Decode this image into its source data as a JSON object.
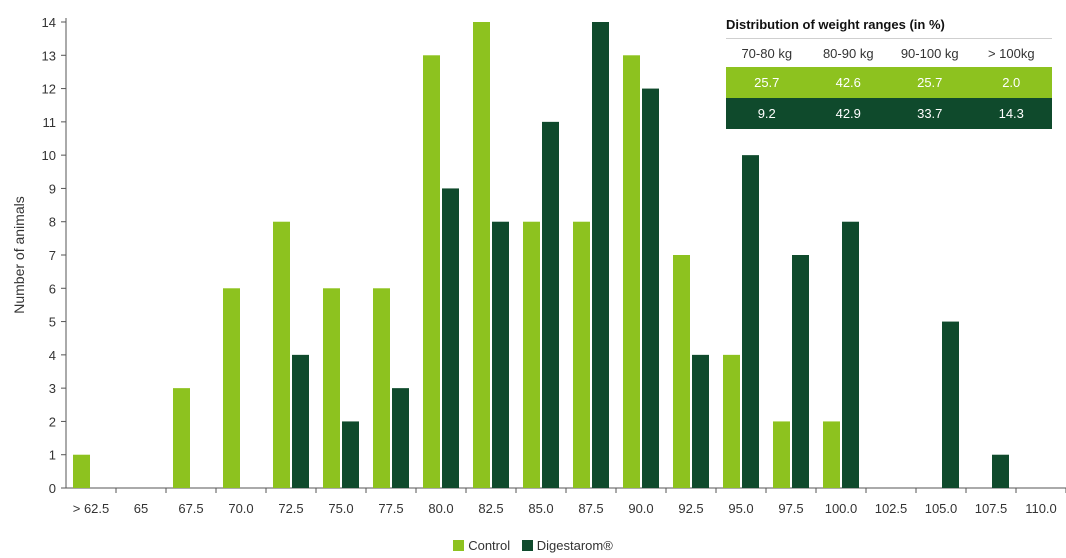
{
  "chart_data": {
    "type": "bar",
    "categories": [
      "> 62.5",
      "65",
      "67.5",
      "70.0",
      "72.5",
      "75.0",
      "77.5",
      "80.0",
      "82.5",
      "85.0",
      "87.5",
      "90.0",
      "92.5",
      "95.0",
      "97.5",
      "100.0",
      "102.5",
      "105.0",
      "107.5",
      "110.0"
    ],
    "series": [
      {
        "name": "Control",
        "color": "#8dc21f",
        "values": [
          1,
          0,
          3,
          6,
          8,
          6,
          6,
          13,
          14,
          8,
          8,
          13,
          7,
          4,
          2,
          2,
          0,
          0,
          0,
          0
        ]
      },
      {
        "name": "Digestarom®",
        "color": "#0f4a2c",
        "values": [
          0,
          0,
          0,
          0,
          4,
          2,
          3,
          9,
          8,
          11,
          14,
          12,
          4,
          10,
          7,
          8,
          0,
          5,
          1,
          0
        ]
      }
    ],
    "ylabel": "Number of animals",
    "xlabel": "",
    "ylim": [
      0,
      14
    ],
    "yticks": [
      0,
      1,
      2,
      3,
      4,
      5,
      6,
      7,
      8,
      9,
      10,
      11,
      12,
      13,
      14
    ],
    "legend_position": "bottom-center",
    "grid": false
  },
  "table": {
    "title": "Distribution of weight ranges (in %)",
    "headers": [
      "70-80 kg",
      "80-90 kg",
      "90-100 kg",
      "> 100kg"
    ],
    "rows": [
      {
        "series": "Control",
        "color": "#8dc21f",
        "values": [
          "25.7",
          "42.6",
          "25.7",
          "2.0"
        ]
      },
      {
        "series": "Digestarom®",
        "color": "#0f4a2c",
        "values": [
          "9.2",
          "42.9",
          "33.7",
          "14.3"
        ]
      }
    ]
  },
  "legend": {
    "items": [
      {
        "label": "Control",
        "color": "#8dc21f"
      },
      {
        "label": "Digestarom®",
        "color": "#0f4a2c"
      }
    ]
  }
}
